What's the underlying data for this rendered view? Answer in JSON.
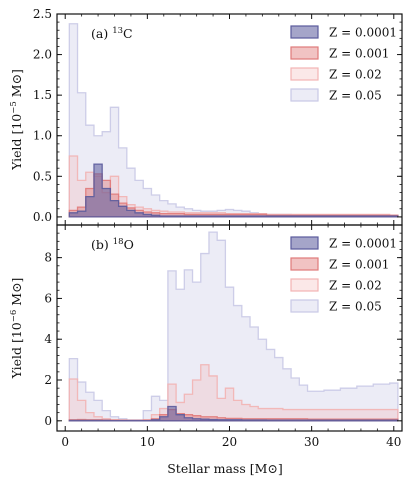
{
  "chart_data": {
    "type": "area",
    "xlabel": "Stellar mass [M⊙]",
    "x_ticks": [
      "0",
      "10",
      "20",
      "30",
      "40"
    ],
    "xlim": [
      -1,
      41
    ],
    "legend_position": "top-right",
    "series_colors": [
      "#5b5b9c",
      "#e07a7a",
      "#f2b3b3",
      "#c9c9e6"
    ],
    "series_fill_opacity": [
      0.55,
      0.45,
      0.3,
      0.35
    ],
    "panels": [
      {
        "label_main": "(a) ",
        "label_sup": "13",
        "label_elem": "C",
        "ylabel_main": "Yield [10",
        "ylabel_sup": "−5",
        "ylabel_unit": " M⊙]",
        "ylim": [
          -0.1,
          2.5
        ],
        "y_ticks": [
          0.0,
          0.5,
          1.0,
          1.5,
          2.0,
          2.5
        ],
        "y_tick_labels": [
          "0.0",
          "0.5",
          "1.0",
          "1.5",
          "2.0",
          "2.5"
        ],
        "series": [
          {
            "name": "Z = 0.0001",
            "points": [
              [
                1,
                0.05
              ],
              [
                2,
                0.07
              ],
              [
                3,
                0.25
              ],
              [
                4,
                0.65
              ],
              [
                5,
                0.35
              ],
              [
                6,
                0.2
              ],
              [
                7,
                0.13
              ],
              [
                8,
                0.08
              ],
              [
                9,
                0.05
              ],
              [
                10,
                0.03
              ],
              [
                11,
                0.02
              ],
              [
                12,
                0.01
              ],
              [
                13,
                0.01
              ],
              [
                15,
                0.01
              ],
              [
                18,
                0.01
              ],
              [
                20,
                0.01
              ],
              [
                25,
                0.01
              ],
              [
                30,
                0.01
              ],
              [
                35,
                0.01
              ],
              [
                40,
                0.01
              ]
            ]
          },
          {
            "name": "Z = 0.001",
            "points": [
              [
                1,
                0.08
              ],
              [
                2,
                0.12
              ],
              [
                3,
                0.35
              ],
              [
                4,
                0.53
              ],
              [
                5,
                0.45
              ],
              [
                6,
                0.28
              ],
              [
                7,
                0.17
              ],
              [
                8,
                0.11
              ],
              [
                9,
                0.08
              ],
              [
                10,
                0.06
              ],
              [
                11,
                0.05
              ],
              [
                12,
                0.04
              ],
              [
                13,
                0.04
              ],
              [
                15,
                0.03
              ],
              [
                18,
                0.03
              ],
              [
                20,
                0.03
              ],
              [
                25,
                0.02
              ],
              [
                30,
                0.02
              ],
              [
                35,
                0.02
              ],
              [
                40,
                0.02
              ]
            ]
          },
          {
            "name": "Z = 0.02",
            "points": [
              [
                1,
                0.75
              ],
              [
                2,
                0.45
              ],
              [
                3,
                0.55
              ],
              [
                4,
                0.5
              ],
              [
                5,
                0.3
              ],
              [
                6,
                0.5
              ],
              [
                7,
                0.25
              ],
              [
                8,
                0.15
              ],
              [
                9,
                0.12
              ],
              [
                10,
                0.1
              ],
              [
                11,
                0.08
              ],
              [
                12,
                0.07
              ],
              [
                13,
                0.06
              ],
              [
                15,
                0.05
              ],
              [
                18,
                0.05
              ],
              [
                20,
                0.04
              ],
              [
                25,
                0.03
              ],
              [
                30,
                0.03
              ],
              [
                35,
                0.03
              ],
              [
                40,
                0.02
              ]
            ]
          },
          {
            "name": "Z = 0.05",
            "points": [
              [
                1,
                2.38
              ],
              [
                2,
                1.53
              ],
              [
                3,
                1.13
              ],
              [
                4,
                1.0
              ],
              [
                5,
                1.05
              ],
              [
                6,
                1.35
              ],
              [
                7,
                0.85
              ],
              [
                8,
                0.6
              ],
              [
                9,
                0.45
              ],
              [
                10,
                0.35
              ],
              [
                11,
                0.27
              ],
              [
                12,
                0.2
              ],
              [
                13,
                0.16
              ],
              [
                14,
                0.12
              ],
              [
                15,
                0.1
              ],
              [
                16,
                0.08
              ],
              [
                17,
                0.07
              ],
              [
                18,
                0.07
              ],
              [
                19,
                0.08
              ],
              [
                20,
                0.09
              ],
              [
                21,
                0.08
              ],
              [
                22,
                0.07
              ],
              [
                23,
                0.05
              ],
              [
                24,
                0.04
              ],
              [
                25,
                0.03
              ],
              [
                26,
                0.03
              ],
              [
                27,
                0.03
              ],
              [
                28,
                0.02
              ],
              [
                29,
                0.02
              ],
              [
                30,
                0.02
              ],
              [
                32,
                0.02
              ],
              [
                35,
                0.02
              ],
              [
                40,
                0.02
              ]
            ]
          }
        ]
      },
      {
        "label_main": "(b) ",
        "label_sup": "18",
        "label_elem": "O",
        "ylabel_main": "Yield [10",
        "ylabel_sup": "−6",
        "ylabel_unit": " M⊙]",
        "ylim": [
          -0.5,
          9.6
        ],
        "y_ticks": [
          0,
          2,
          4,
          6,
          8
        ],
        "y_tick_labels": [
          "0",
          "2",
          "4",
          "6",
          "8"
        ],
        "series": [
          {
            "name": "Z = 0.0001",
            "points": [
              [
                1,
                0.02
              ],
              [
                2,
                0.02
              ],
              [
                3,
                0.02
              ],
              [
                4,
                0.02
              ],
              [
                5,
                0.02
              ],
              [
                6,
                0.01
              ],
              [
                7,
                0.01
              ],
              [
                8,
                0.01
              ],
              [
                9,
                0.01
              ],
              [
                10,
                0.01
              ],
              [
                11,
                0.05
              ],
              [
                12,
                0.2
              ],
              [
                13,
                0.7
              ],
              [
                14,
                0.3
              ],
              [
                15,
                0.15
              ],
              [
                16,
                0.1
              ],
              [
                17,
                0.08
              ],
              [
                18,
                0.06
              ],
              [
                19,
                0.05
              ],
              [
                20,
                0.05
              ],
              [
                22,
                0.04
              ],
              [
                25,
                0.03
              ],
              [
                30,
                0.03
              ],
              [
                35,
                0.03
              ],
              [
                40,
                0.03
              ]
            ]
          },
          {
            "name": "Z = 0.001",
            "points": [
              [
                1,
                0.05
              ],
              [
                2,
                0.06
              ],
              [
                3,
                0.05
              ],
              [
                4,
                0.05
              ],
              [
                5,
                0.04
              ],
              [
                6,
                0.03
              ],
              [
                7,
                0.03
              ],
              [
                8,
                0.02
              ],
              [
                9,
                0.02
              ],
              [
                10,
                0.03
              ],
              [
                11,
                0.1
              ],
              [
                12,
                0.3
              ],
              [
                13,
                0.55
              ],
              [
                14,
                0.35
              ],
              [
                15,
                0.3
              ],
              [
                16,
                0.25
              ],
              [
                17,
                0.2
              ],
              [
                18,
                0.2
              ],
              [
                19,
                0.15
              ],
              [
                20,
                0.12
              ],
              [
                22,
                0.1
              ],
              [
                25,
                0.1
              ],
              [
                30,
                0.08
              ],
              [
                35,
                0.08
              ],
              [
                40,
                0.08
              ]
            ]
          },
          {
            "name": "Z = 0.02",
            "points": [
              [
                1,
                2.05
              ],
              [
                2,
                1.0
              ],
              [
                3,
                0.4
              ],
              [
                4,
                0.2
              ],
              [
                5,
                0.1
              ],
              [
                6,
                0.05
              ],
              [
                7,
                0.03
              ],
              [
                8,
                0.02
              ],
              [
                9,
                0.02
              ],
              [
                10,
                0.05
              ],
              [
                11,
                0.3
              ],
              [
                12,
                0.6
              ],
              [
                13,
                1.8
              ],
              [
                14,
                0.9
              ],
              [
                15,
                1.3
              ],
              [
                16,
                2.0
              ],
              [
                17,
                2.75
              ],
              [
                18,
                2.2
              ],
              [
                19,
                1.1
              ],
              [
                20,
                1.6
              ],
              [
                21,
                1.0
              ],
              [
                22,
                0.8
              ],
              [
                23,
                0.7
              ],
              [
                24,
                0.6
              ],
              [
                25,
                0.6
              ],
              [
                26,
                0.6
              ],
              [
                27,
                0.55
              ],
              [
                28,
                0.55
              ],
              [
                29,
                0.55
              ],
              [
                30,
                0.55
              ],
              [
                32,
                0.55
              ],
              [
                35,
                0.55
              ],
              [
                40,
                0.55
              ]
            ]
          },
          {
            "name": "Z = 0.05",
            "points": [
              [
                1,
                3.05
              ],
              [
                2,
                1.9
              ],
              [
                3,
                1.4
              ],
              [
                4,
                1.0
              ],
              [
                5,
                0.5
              ],
              [
                6,
                0.2
              ],
              [
                7,
                0.1
              ],
              [
                8,
                0.05
              ],
              [
                9,
                0.05
              ],
              [
                10,
                0.5
              ],
              [
                11,
                1.2
              ],
              [
                12,
                1.0
              ],
              [
                13,
                7.35
              ],
              [
                14,
                6.45
              ],
              [
                15,
                7.4
              ],
              [
                16,
                6.8
              ],
              [
                17,
                8.2
              ],
              [
                18,
                9.25
              ],
              [
                19,
                8.85
              ],
              [
                20,
                6.55
              ],
              [
                21,
                5.65
              ],
              [
                22,
                5.1
              ],
              [
                23,
                4.6
              ],
              [
                24,
                4.0
              ],
              [
                25,
                3.5
              ],
              [
                26,
                3.1
              ],
              [
                27,
                2.55
              ],
              [
                28,
                2.1
              ],
              [
                29,
                1.75
              ],
              [
                30,
                1.45
              ],
              [
                32,
                1.5
              ],
              [
                34,
                1.6
              ],
              [
                36,
                1.7
              ],
              [
                38,
                1.8
              ],
              [
                40,
                1.85
              ]
            ]
          }
        ]
      }
    ]
  }
}
